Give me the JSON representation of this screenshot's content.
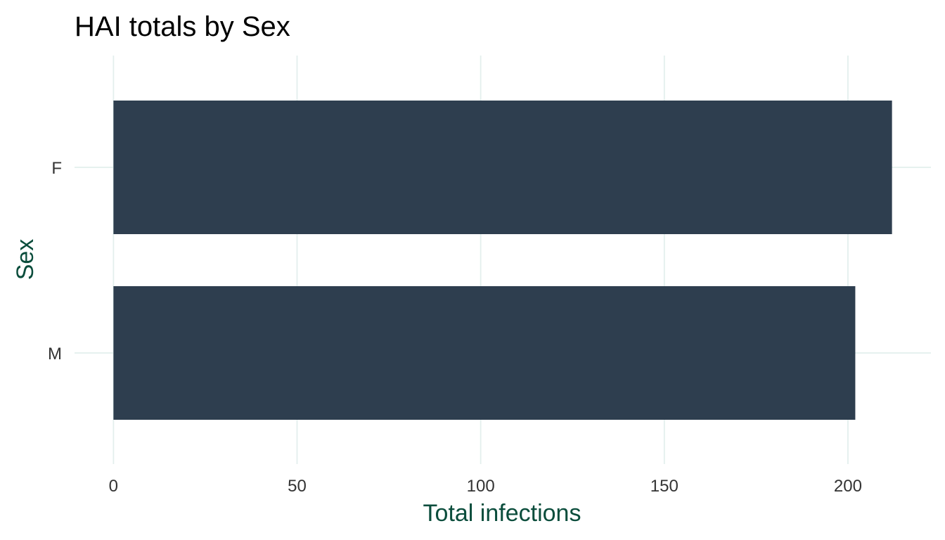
{
  "chart_data": {
    "type": "bar",
    "orientation": "horizontal",
    "title": "HAI totals by Sex",
    "xlabel": "Total infections",
    "ylabel": "Sex",
    "categories": [
      "F",
      "M"
    ],
    "values": [
      212,
      202
    ],
    "xlim": [
      -10.6,
      222.6
    ],
    "xticks": [
      0,
      50,
      100,
      150,
      200
    ],
    "xtick_labels": [
      "0",
      "50",
      "100",
      "150",
      "200"
    ],
    "grid": true,
    "legend": "none"
  },
  "colors": {
    "bar": "#2e3e4f",
    "axis_title": "#0b4d3c",
    "grid": "#e3efed",
    "tick_label": "#333333",
    "background": "#ffffff"
  }
}
